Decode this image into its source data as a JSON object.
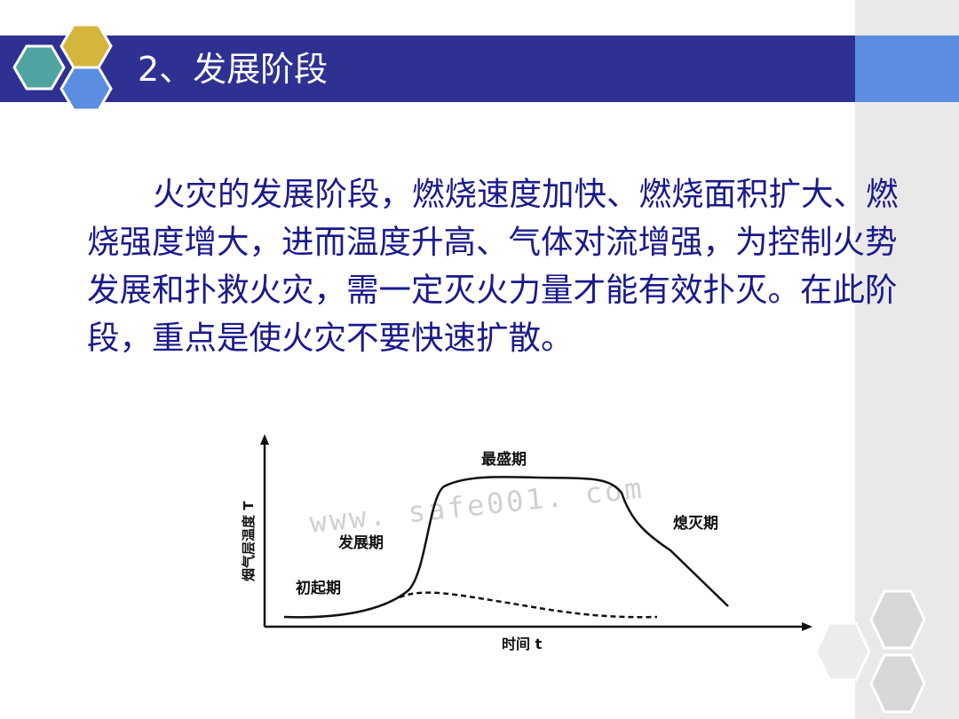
{
  "slide": {
    "title": "2、发展阶段",
    "body": "火灾的发展阶段，燃烧速度加快、燃烧面积扩大、燃烧强度增大，进而温度升高、气体对流增强，为控制火势发展和扑救火灾，需一定灭火力量才能有效扑灭。在此阶段，重点是使火灾不要快速扩散。",
    "colors": {
      "title_bar": "#2e3192",
      "title_accent": "#5b8de0",
      "body_text": "#1a1a8c",
      "hex_yellow": "#d4b63c",
      "hex_teal": "#4fa3a0",
      "hex_blue": "#5b8de0"
    }
  },
  "figure": {
    "y_axis_label": "烟气层温度 T",
    "x_axis_label": "时间 t",
    "stages": {
      "initial": "初起期",
      "growth": "发展期",
      "peak": "最盛期",
      "decay": "熄灭期"
    },
    "watermark": "www. safe001. com"
  }
}
